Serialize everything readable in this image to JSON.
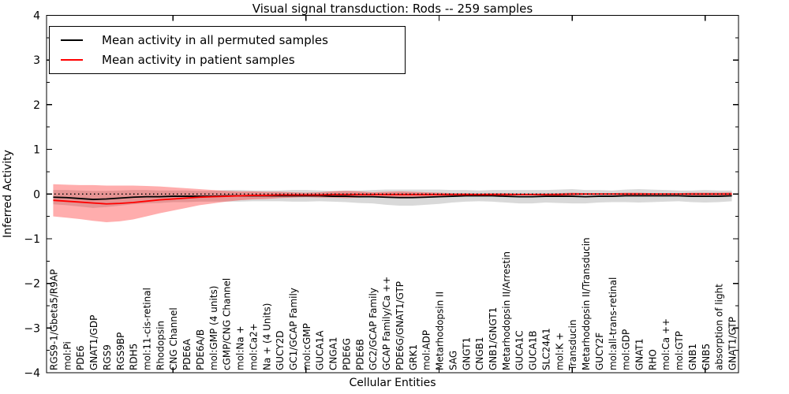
{
  "chart_data": {
    "type": "line",
    "title": "Visual signal transduction: Rods -- 259 samples",
    "xlabel": "Cellular Entities",
    "ylabel": "Inferred Activity",
    "sample_count": 259,
    "ylim": [
      -4,
      4
    ],
    "yticks": [
      4,
      3,
      2,
      1,
      0,
      -1,
      -2,
      -3,
      -4
    ],
    "y_minor_tick_step": 0.5,
    "x_major_tick_indices": [
      9,
      19,
      29,
      39,
      49
    ],
    "grid": false,
    "zero_line_style": "dotted",
    "legend_position": "upper left",
    "colors": {
      "permuted_line": "#000000",
      "patient_line": "#ff0000",
      "permuted_band": "#808080",
      "patient_band": "#ff0000",
      "permuted_band_opacity": 0.3,
      "patient_band_opacity": 0.32,
      "axis": "#000000"
    },
    "categories": [
      "RGS9-1/Gbeta5/R9AP",
      "mol:Pi",
      "PDE6",
      "GNAT1/GDP",
      "RGS9",
      "RGS9BP",
      "RDH5",
      "mol:11-cis-retinal",
      "Rhodopsin",
      "CNG Channel",
      "PDE6A",
      "PDE6A/B",
      "mol:GMP (4 units)",
      "cGMP/CNG Channel",
      "mol:Na +",
      "mol:Ca2+",
      "Na + (4 Units)",
      "GUCY2D",
      "GC1/GCAP Family",
      "mol:cGMP",
      "GUCA1A",
      "CNGA1",
      "PDE6G",
      "PDE6B",
      "GC2/GCAP Family",
      "GCAP Family/Ca ++",
      "PDE6G/GNAT1/GTP",
      "GRK1",
      "mol:ADP",
      "Metarhodopsin II",
      "SAG",
      "GNGT1",
      "CNGB1",
      "GNB1/GNGT1",
      "Metarhodopsin II/Arrestin",
      "GUCA1C",
      "GUCA1B",
      "SLC24A1",
      "mol:K +",
      "Transducin",
      "Metarhodopsin II/Transducin",
      "GUCY2F",
      "mol:all-trans-retinal",
      "mol:GDP",
      "GNAT1",
      "RHO",
      "mol:Ca ++",
      "mol:GTP",
      "GNB1",
      "GNB5",
      "absorption of light",
      "GNAT1/GTP"
    ],
    "series": [
      {
        "name": "Mean activity in all permuted samples",
        "role": "permuted",
        "values": [
          -0.07,
          -0.08,
          -0.1,
          -0.12,
          -0.11,
          -0.09,
          -0.07,
          -0.06,
          -0.06,
          -0.05,
          -0.05,
          -0.05,
          -0.05,
          -0.04,
          -0.04,
          -0.04,
          -0.04,
          -0.04,
          -0.04,
          -0.04,
          -0.04,
          -0.05,
          -0.05,
          -0.06,
          -0.06,
          -0.07,
          -0.08,
          -0.08,
          -0.07,
          -0.06,
          -0.05,
          -0.04,
          -0.04,
          -0.04,
          -0.05,
          -0.06,
          -0.06,
          -0.05,
          -0.05,
          -0.05,
          -0.06,
          -0.05,
          -0.05,
          -0.04,
          -0.04,
          -0.04,
          -0.04,
          -0.04,
          -0.05,
          -0.05,
          -0.05,
          -0.04
        ],
        "std": [
          0.16,
          0.17,
          0.18,
          0.19,
          0.18,
          0.17,
          0.16,
          0.15,
          0.14,
          0.13,
          0.13,
          0.12,
          0.12,
          0.13,
          0.13,
          0.12,
          0.12,
          0.12,
          0.13,
          0.13,
          0.12,
          0.12,
          0.13,
          0.14,
          0.15,
          0.17,
          0.18,
          0.18,
          0.17,
          0.16,
          0.14,
          0.13,
          0.12,
          0.13,
          0.14,
          0.15,
          0.15,
          0.14,
          0.15,
          0.16,
          0.15,
          0.14,
          0.13,
          0.14,
          0.15,
          0.14,
          0.13,
          0.12,
          0.13,
          0.14,
          0.13,
          0.12
        ]
      },
      {
        "name": "Mean activity in patient samples",
        "role": "patient",
        "values": [
          -0.14,
          -0.16,
          -0.18,
          -0.2,
          -0.22,
          -0.21,
          -0.19,
          -0.16,
          -0.13,
          -0.11,
          -0.09,
          -0.07,
          -0.06,
          -0.05,
          -0.04,
          -0.03,
          -0.03,
          -0.02,
          -0.02,
          -0.02,
          -0.02,
          -0.01,
          -0.01,
          -0.01,
          -0.01,
          -0.01,
          -0.01,
          -0.01,
          -0.01,
          -0.01,
          -0.01,
          -0.01,
          -0.01,
          -0.01,
          -0.01,
          -0.01,
          -0.01,
          -0.01,
          -0.01,
          0.0,
          0.0,
          0.0,
          0.0,
          0.0,
          0.0,
          0.0,
          0.0,
          0.0,
          0.0,
          0.0,
          0.0,
          0.0
        ],
        "std": [
          0.36,
          0.37,
          0.38,
          0.4,
          0.41,
          0.4,
          0.38,
          0.34,
          0.3,
          0.26,
          0.22,
          0.18,
          0.15,
          0.12,
          0.1,
          0.09,
          0.08,
          0.07,
          0.06,
          0.05,
          0.06,
          0.07,
          0.08,
          0.07,
          0.05,
          0.06,
          0.07,
          0.06,
          0.05,
          0.04,
          0.03,
          0.03,
          0.02,
          0.03,
          0.03,
          0.02,
          0.02,
          0.02,
          0.03,
          0.03,
          0.02,
          0.02,
          0.02,
          0.03,
          0.03,
          0.02,
          0.02,
          0.02,
          0.03,
          0.03,
          0.03,
          0.04
        ]
      }
    ]
  },
  "legend": {
    "items": [
      {
        "label": "Mean activity in all permuted samples",
        "color": "#000000"
      },
      {
        "label": "Mean activity in patient samples",
        "color": "#ff0000"
      }
    ]
  }
}
